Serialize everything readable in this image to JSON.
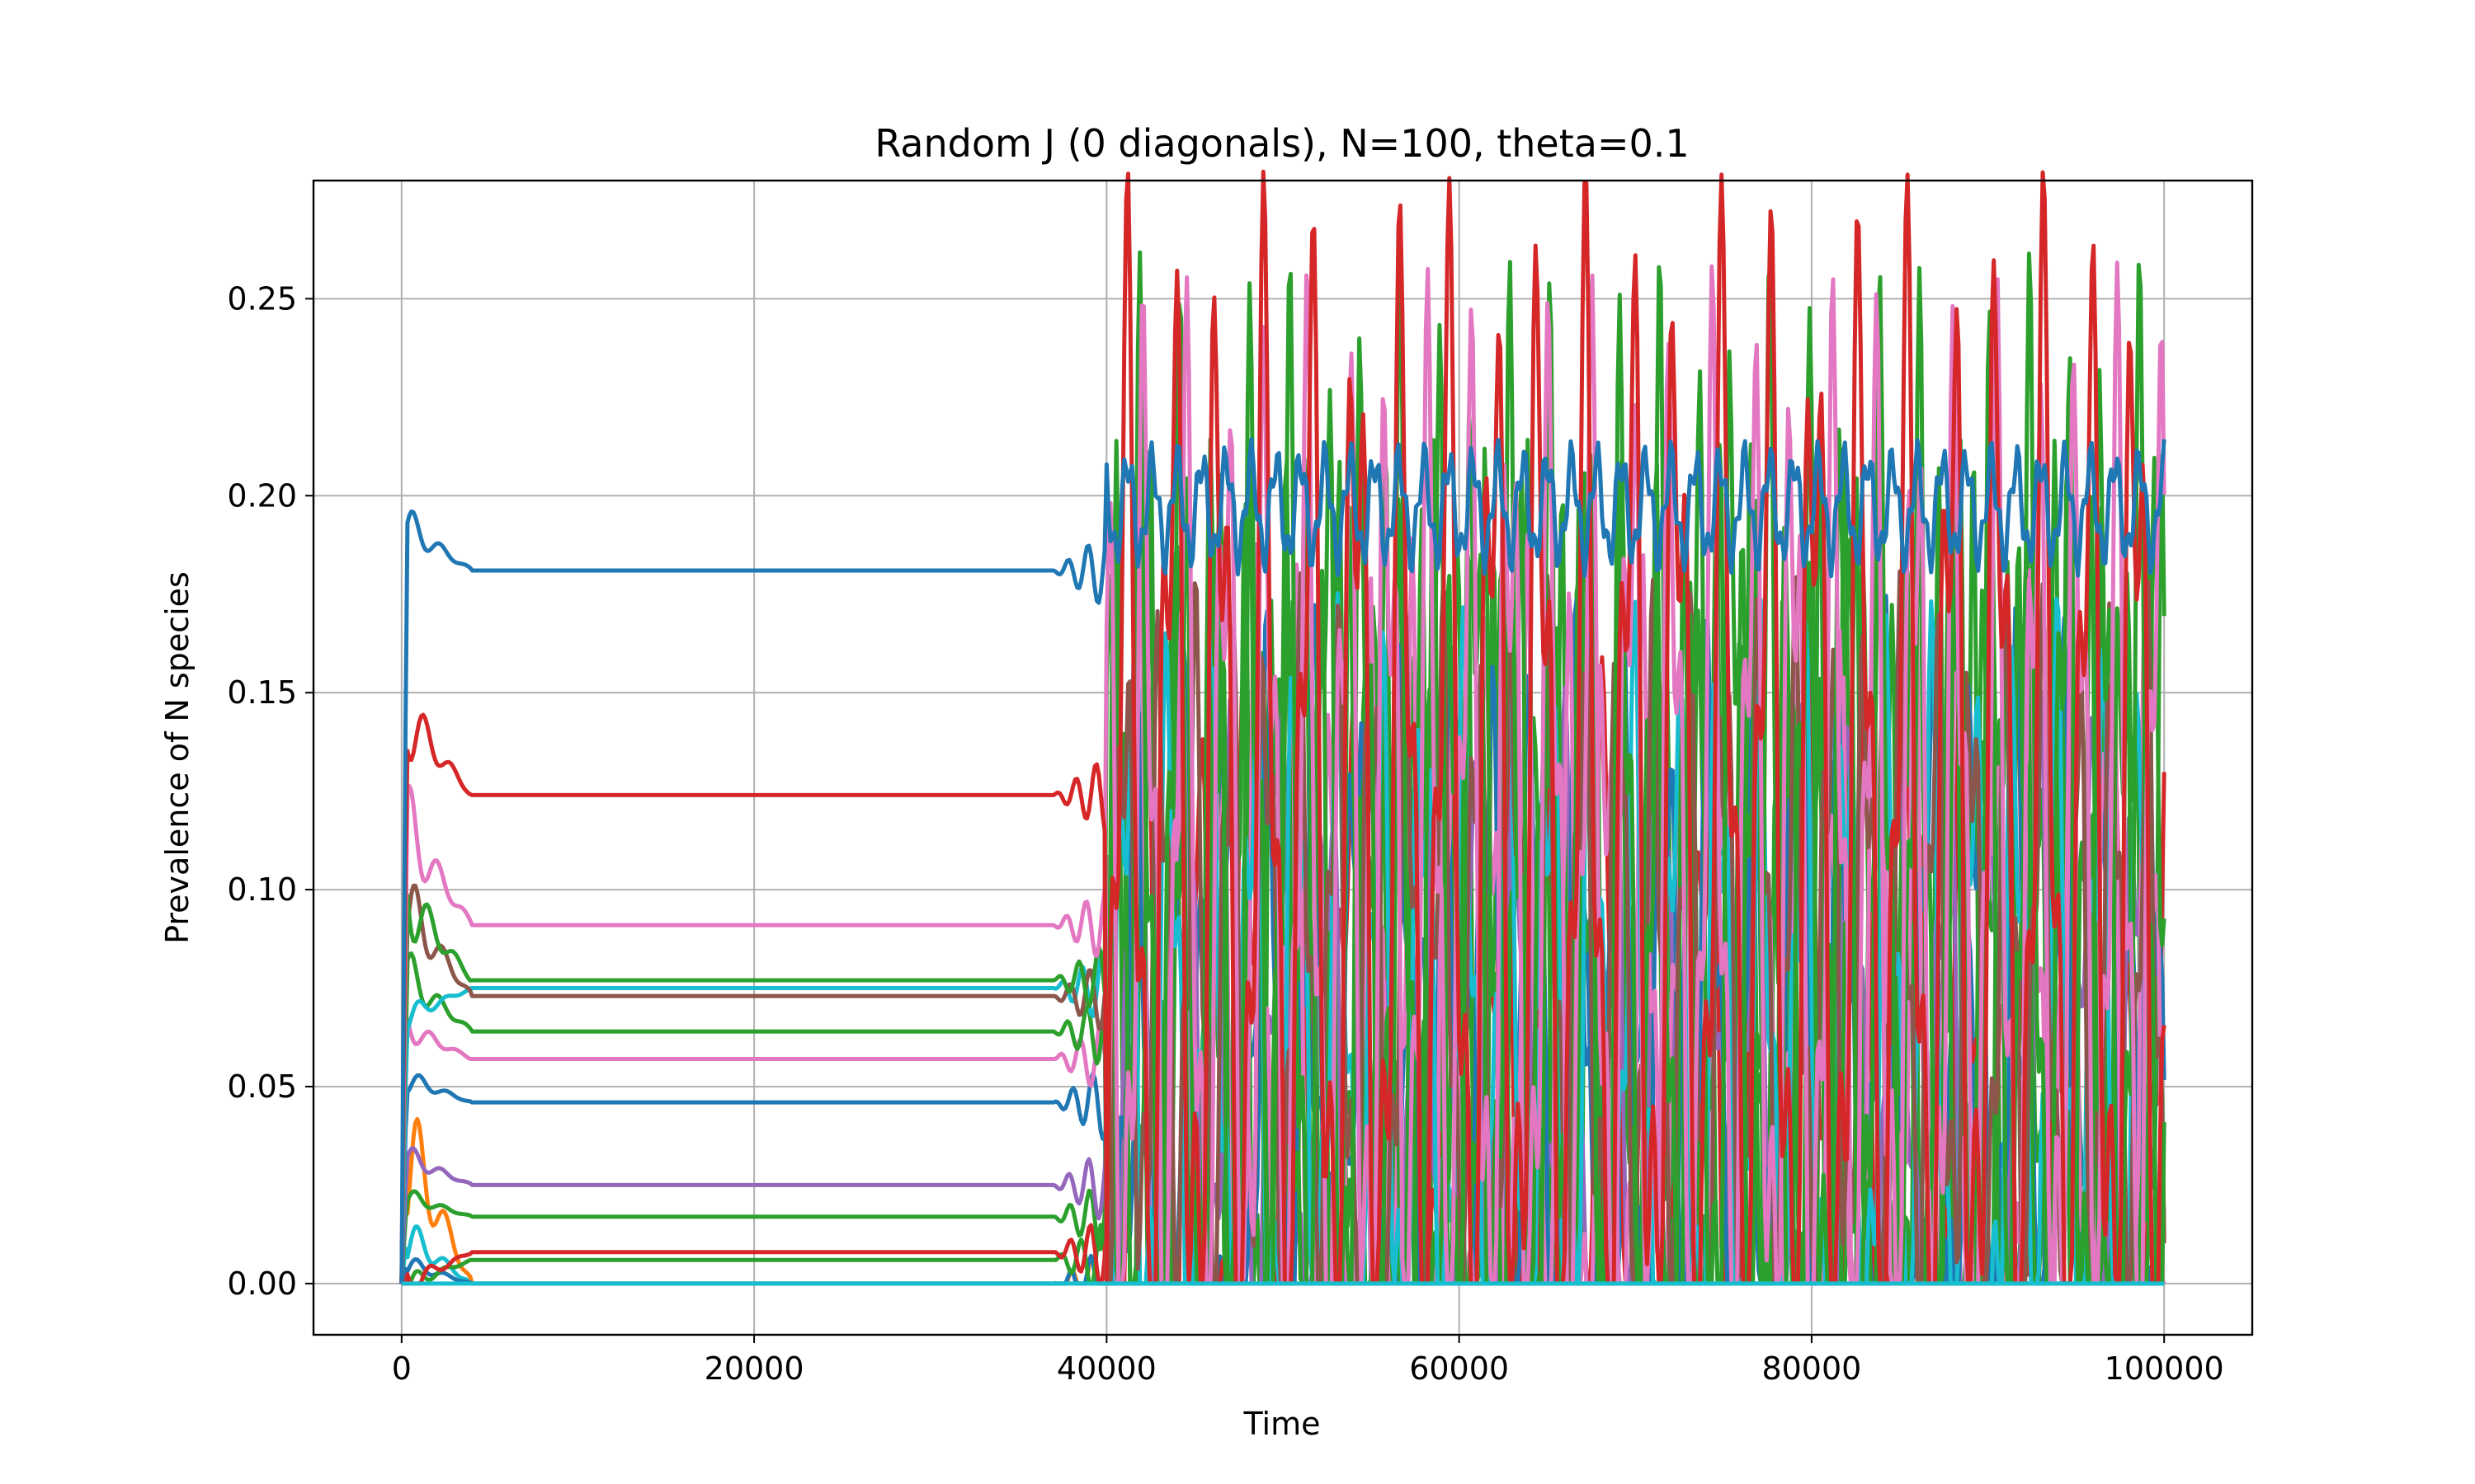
{
  "chart_data": {
    "type": "line",
    "title": "Random J (0 diagonals), N=100, theta=0.1",
    "xlabel": "Time",
    "ylabel": "Prevalence of N species",
    "xlim": [
      -5000,
      105000
    ],
    "ylim": [
      -0.013,
      0.28
    ],
    "xticks": [
      0,
      20000,
      40000,
      60000,
      80000,
      100000
    ],
    "xtick_labels": [
      "0",
      "20000",
      "40000",
      "60000",
      "80000",
      "100000"
    ],
    "yticks": [
      0.0,
      0.05,
      0.1,
      0.15,
      0.2,
      0.25
    ],
    "ytick_labels": [
      "0.00",
      "0.05",
      "0.10",
      "0.15",
      "0.20",
      "0.25"
    ],
    "grid": true,
    "legend": "none",
    "transition_time": 40000,
    "end_time": 100000,
    "series": [
      {
        "color": "#1f77b4",
        "plateau": 0.181,
        "early": 0.192,
        "late_mean": 0.197,
        "late_amp": 0.012,
        "period": 1400,
        "late_min": 0.16
      },
      {
        "color": "#d62728",
        "plateau": 0.124,
        "early": 0.144,
        "late_mean": 0.11,
        "late_amp": 0.12,
        "period": 2600,
        "late_min": 0.0
      },
      {
        "color": "#e377c2",
        "plateau": 0.091,
        "early": 0.115,
        "late_mean": 0.1,
        "late_amp": 0.11,
        "period": 2300,
        "late_min": 0.0
      },
      {
        "color": "#2ca02c",
        "plateau": 0.077,
        "early": 0.098,
        "late_mean": 0.09,
        "late_amp": 0.12,
        "period": 2100,
        "late_min": 0.0
      },
      {
        "color": "#8c564b",
        "plateau": 0.073,
        "early": 0.095,
        "late_mean": 0.08,
        "late_amp": 0.07,
        "period": 2000,
        "late_min": 0.0
      },
      {
        "color": "#17becf",
        "plateau": 0.075,
        "early": 0.068,
        "late_mean": 0.06,
        "late_amp": 0.08,
        "period": 2400,
        "late_min": 0.0
      },
      {
        "color": "#2ca02c",
        "plateau": 0.064,
        "early": 0.078,
        "late_mean": 0.07,
        "late_amp": 0.1,
        "period": 1900,
        "late_min": 0.0
      },
      {
        "color": "#e377c2",
        "plateau": 0.057,
        "early": 0.065,
        "late_mean": 0.06,
        "late_amp": 0.09,
        "period": 2200,
        "late_min": 0.0
      },
      {
        "color": "#1f77b4",
        "plateau": 0.046,
        "early": 0.052,
        "late_mean": 0.06,
        "late_amp": 0.08,
        "period": 2500,
        "late_min": 0.0
      },
      {
        "color": "#9467bd",
        "plateau": 0.025,
        "early": 0.032,
        "late_mean": 0.05,
        "late_amp": 0.07,
        "period": 2700,
        "late_min": 0.0
      },
      {
        "color": "#2ca02c",
        "plateau": 0.017,
        "early": 0.022,
        "late_mean": 0.07,
        "late_amp": 0.1,
        "period": 1800,
        "late_min": 0.0
      },
      {
        "color": "#d62728",
        "plateau": 0.008,
        "early": 0.0,
        "late_mean": 0.05,
        "late_amp": 0.08,
        "period": 2900,
        "late_min": 0.0
      },
      {
        "color": "#2ca02c",
        "plateau": 0.006,
        "early": 0.0,
        "late_mean": 0.06,
        "late_amp": 0.09,
        "period": 2300,
        "late_min": 0.0
      },
      {
        "color": "#1f77b4",
        "plateau": 0.0,
        "early": 0.005,
        "late_mean": 0.03,
        "late_amp": 0.05,
        "period": 3100,
        "late_min": 0.0
      },
      {
        "color": "#ff7f0e",
        "plateau": 0.0,
        "early": 0.035,
        "late_mean": 0.0,
        "late_amp": 0.0,
        "period": 3000,
        "late_min": 0.0
      },
      {
        "color": "#17becf",
        "plateau": 0.0,
        "early": 0.012,
        "late_mean": 0.0,
        "late_amp": 0.0,
        "period": 3000,
        "late_min": 0.0
      }
    ]
  }
}
